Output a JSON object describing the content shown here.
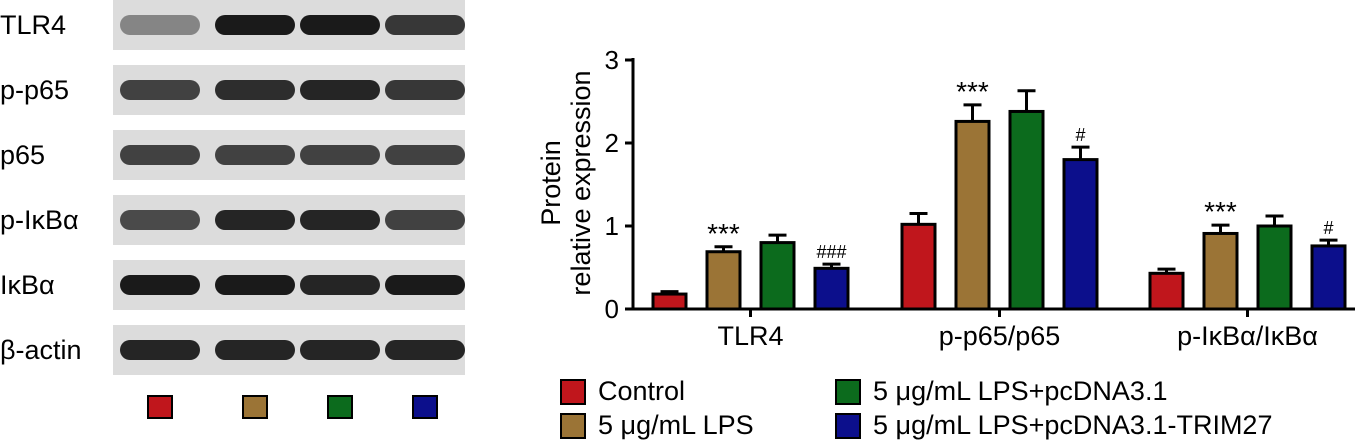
{
  "blot": {
    "rows": [
      {
        "label": "TLR4",
        "bands": [
          0.45,
          1.0,
          1.0,
          0.85
        ]
      },
      {
        "label": "p-p65",
        "bands": [
          0.8,
          0.9,
          0.95,
          0.85
        ]
      },
      {
        "label": "p65",
        "bands": [
          0.8,
          0.8,
          0.8,
          0.8
        ]
      },
      {
        "label": "p-IκBα",
        "bands": [
          0.75,
          0.95,
          0.95,
          0.8
        ]
      },
      {
        "label": "IκBα",
        "bands": [
          1.0,
          1.0,
          0.95,
          1.0
        ]
      },
      {
        "label": "β-actin",
        "bands": [
          0.95,
          0.95,
          0.95,
          0.95
        ]
      }
    ],
    "lane_colors": [
      "#c0161c",
      "#9b7436",
      "#0c6b1d",
      "#0c0f8c"
    ]
  },
  "chart_data": {
    "type": "bar",
    "categories": [
      "TLR4",
      "p-p65/p65",
      "p-IκBα/IκBα"
    ],
    "ylabel_line1": "Protein",
    "ylabel_line2": "relative expression",
    "ylim": [
      0,
      3
    ],
    "yticks": [
      "0",
      "1",
      "2",
      "3"
    ],
    "series": [
      {
        "name": "Control",
        "color": "#c0161c",
        "values": [
          0.18,
          1.02,
          0.43
        ],
        "errors": [
          0.03,
          0.13,
          0.05
        ],
        "annotations": [
          "",
          "",
          ""
        ]
      },
      {
        "name": "5 μg/mL LPS",
        "color": "#9b7436",
        "values": [
          0.69,
          2.26,
          0.91
        ],
        "errors": [
          0.06,
          0.2,
          0.1
        ],
        "annotations": [
          "***",
          "***",
          "***"
        ]
      },
      {
        "name": "5 μg/mL LPS+pcDNA3.1",
        "color": "#0c6b1d",
        "values": [
          0.8,
          2.38,
          1.0
        ],
        "errors": [
          0.09,
          0.25,
          0.12
        ],
        "annotations": [
          "",
          "",
          ""
        ]
      },
      {
        "name": "5 μg/mL LPS+pcDNA3.1-TRIM27",
        "color": "#0c0f8c",
        "values": [
          0.49,
          1.8,
          0.76
        ],
        "errors": [
          0.05,
          0.15,
          0.07
        ],
        "annotations": [
          "###",
          "#",
          "#"
        ]
      }
    ]
  }
}
